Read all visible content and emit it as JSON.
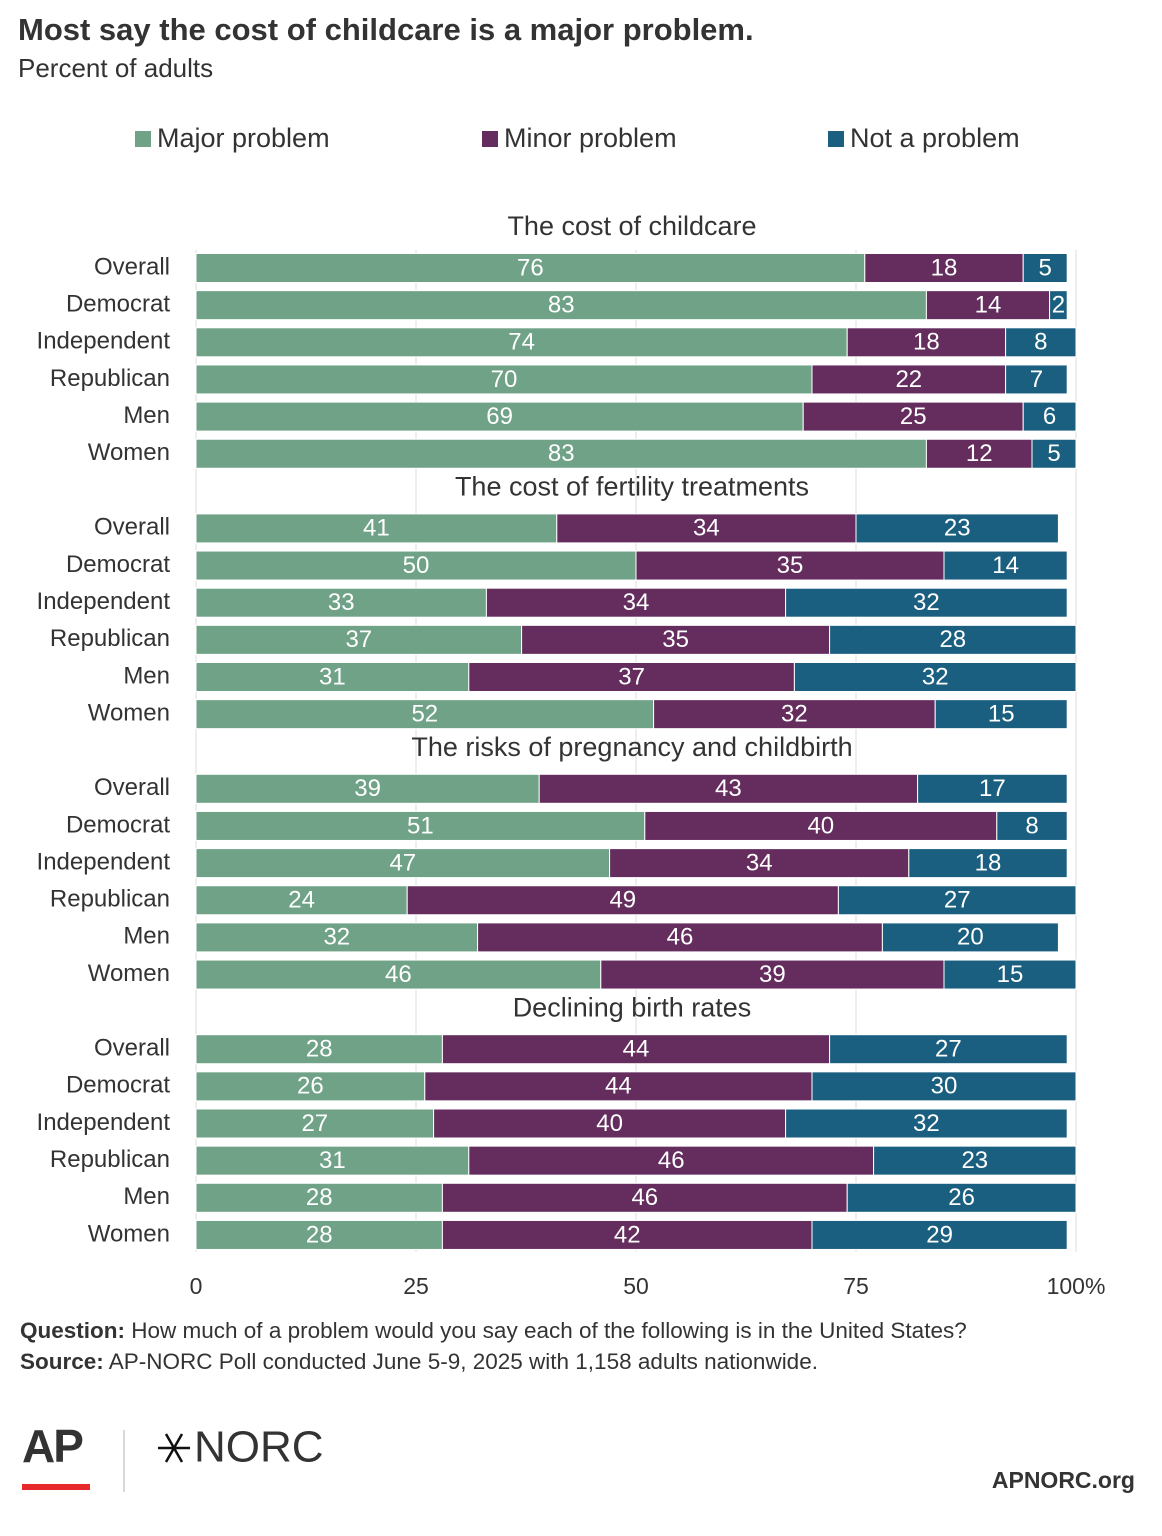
{
  "chart_data": {
    "type": "stacked-bar",
    "title": "Most say the cost of childcare is a major problem.",
    "subtitle": "Percent of adults",
    "series": [
      {
        "name": "Major problem",
        "color": "#6fa287"
      },
      {
        "name": "Minor problem",
        "color": "#642d5e"
      },
      {
        "name": "Not a problem",
        "color": "#1a5f80"
      }
    ],
    "panels": [
      {
        "title": "The cost of childcare",
        "categories": [
          "Overall",
          "Democrat",
          "Independent",
          "Republican",
          "Men",
          "Women"
        ],
        "values": [
          [
            76,
            83,
            74,
            70,
            69,
            83
          ],
          [
            18,
            14,
            18,
            22,
            25,
            12
          ],
          [
            5,
            2,
            8,
            7,
            6,
            5
          ]
        ]
      },
      {
        "title": "The cost of fertility treatments",
        "categories": [
          "Overall",
          "Democrat",
          "Independent",
          "Republican",
          "Men",
          "Women"
        ],
        "values": [
          [
            41,
            50,
            33,
            37,
            31,
            52
          ],
          [
            34,
            35,
            34,
            35,
            37,
            32
          ],
          [
            23,
            14,
            32,
            28,
            32,
            15
          ]
        ]
      },
      {
        "title": "The risks of pregnancy and childbirth",
        "categories": [
          "Overall",
          "Democrat",
          "Independent",
          "Republican",
          "Men",
          "Women"
        ],
        "values": [
          [
            39,
            51,
            47,
            24,
            32,
            46
          ],
          [
            43,
            40,
            34,
            49,
            46,
            39
          ],
          [
            17,
            8,
            18,
            27,
            20,
            15
          ]
        ]
      },
      {
        "title": "Declining birth rates",
        "categories": [
          "Overall",
          "Democrat",
          "Independent",
          "Republican",
          "Men",
          "Women"
        ],
        "values": [
          [
            28,
            26,
            27,
            31,
            28,
            28
          ],
          [
            44,
            44,
            40,
            46,
            46,
            42
          ],
          [
            27,
            30,
            32,
            23,
            26,
            29
          ]
        ]
      }
    ],
    "xlim": [
      0,
      100
    ],
    "xticks": [
      0,
      25,
      50,
      75,
      {
        "value": 100,
        "label": "100%"
      }
    ],
    "grid": true,
    "question_label": "Question:",
    "question": "How much of a problem would you say each of the following is in the United States?",
    "source_label": "Source:",
    "source": "AP-NORC Poll conducted June 5-9, 2025 with 1,158 adults nationwide.",
    "logo_ap": "AP",
    "logo_norc": "NORC",
    "website": "APNORC.org"
  }
}
